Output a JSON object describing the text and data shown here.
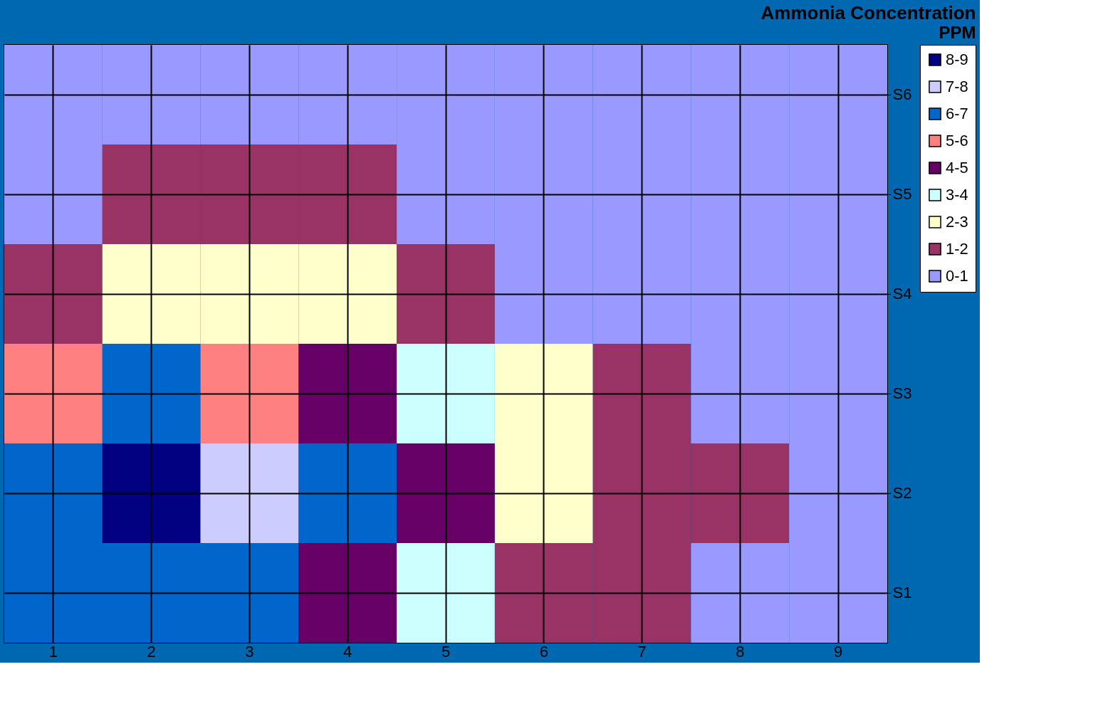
{
  "chart_data": {
    "type": "heatmap",
    "title": "Ammonia Concentration",
    "subtitle": "PPM",
    "categories": [
      "1",
      "2",
      "3",
      "4",
      "5",
      "6",
      "7",
      "8",
      "9"
    ],
    "y_categories": [
      "S6",
      "S5",
      "S4",
      "S3",
      "S2",
      "S1"
    ],
    "cells": [
      [
        0,
        0,
        0,
        0,
        0,
        0,
        0,
        0,
        0
      ],
      [
        0,
        1,
        1,
        1,
        0,
        0,
        0,
        0,
        0
      ],
      [
        1,
        2,
        2,
        2,
        1,
        0,
        0,
        0,
        0
      ],
      [
        5,
        6,
        5,
        4,
        3,
        2,
        1,
        0,
        0
      ],
      [
        6,
        8,
        7,
        6,
        4,
        2,
        1,
        1,
        0
      ],
      [
        6,
        6,
        6,
        4,
        3,
        1,
        1,
        0,
        0
      ]
    ],
    "cticks": [
      {
        "value": 0,
        "label": "0-1"
      },
      {
        "value": 1,
        "label": "1-2"
      },
      {
        "value": 2,
        "label": "2-3"
      },
      {
        "value": 3,
        "label": "3-4"
      },
      {
        "value": 4,
        "label": "4-5"
      },
      {
        "value": 5,
        "label": "5-6"
      },
      {
        "value": 6,
        "label": "6-7"
      },
      {
        "value": 7,
        "label": "7-8"
      },
      {
        "value": 8,
        "label": "8-9"
      }
    ],
    "colors": [
      "#9999ff",
      "#993366",
      "#ffffcc",
      "#ccffff",
      "#660066",
      "#ff8080",
      "#0066cc",
      "#ccccff",
      "#000080"
    ],
    "grid": true
  }
}
